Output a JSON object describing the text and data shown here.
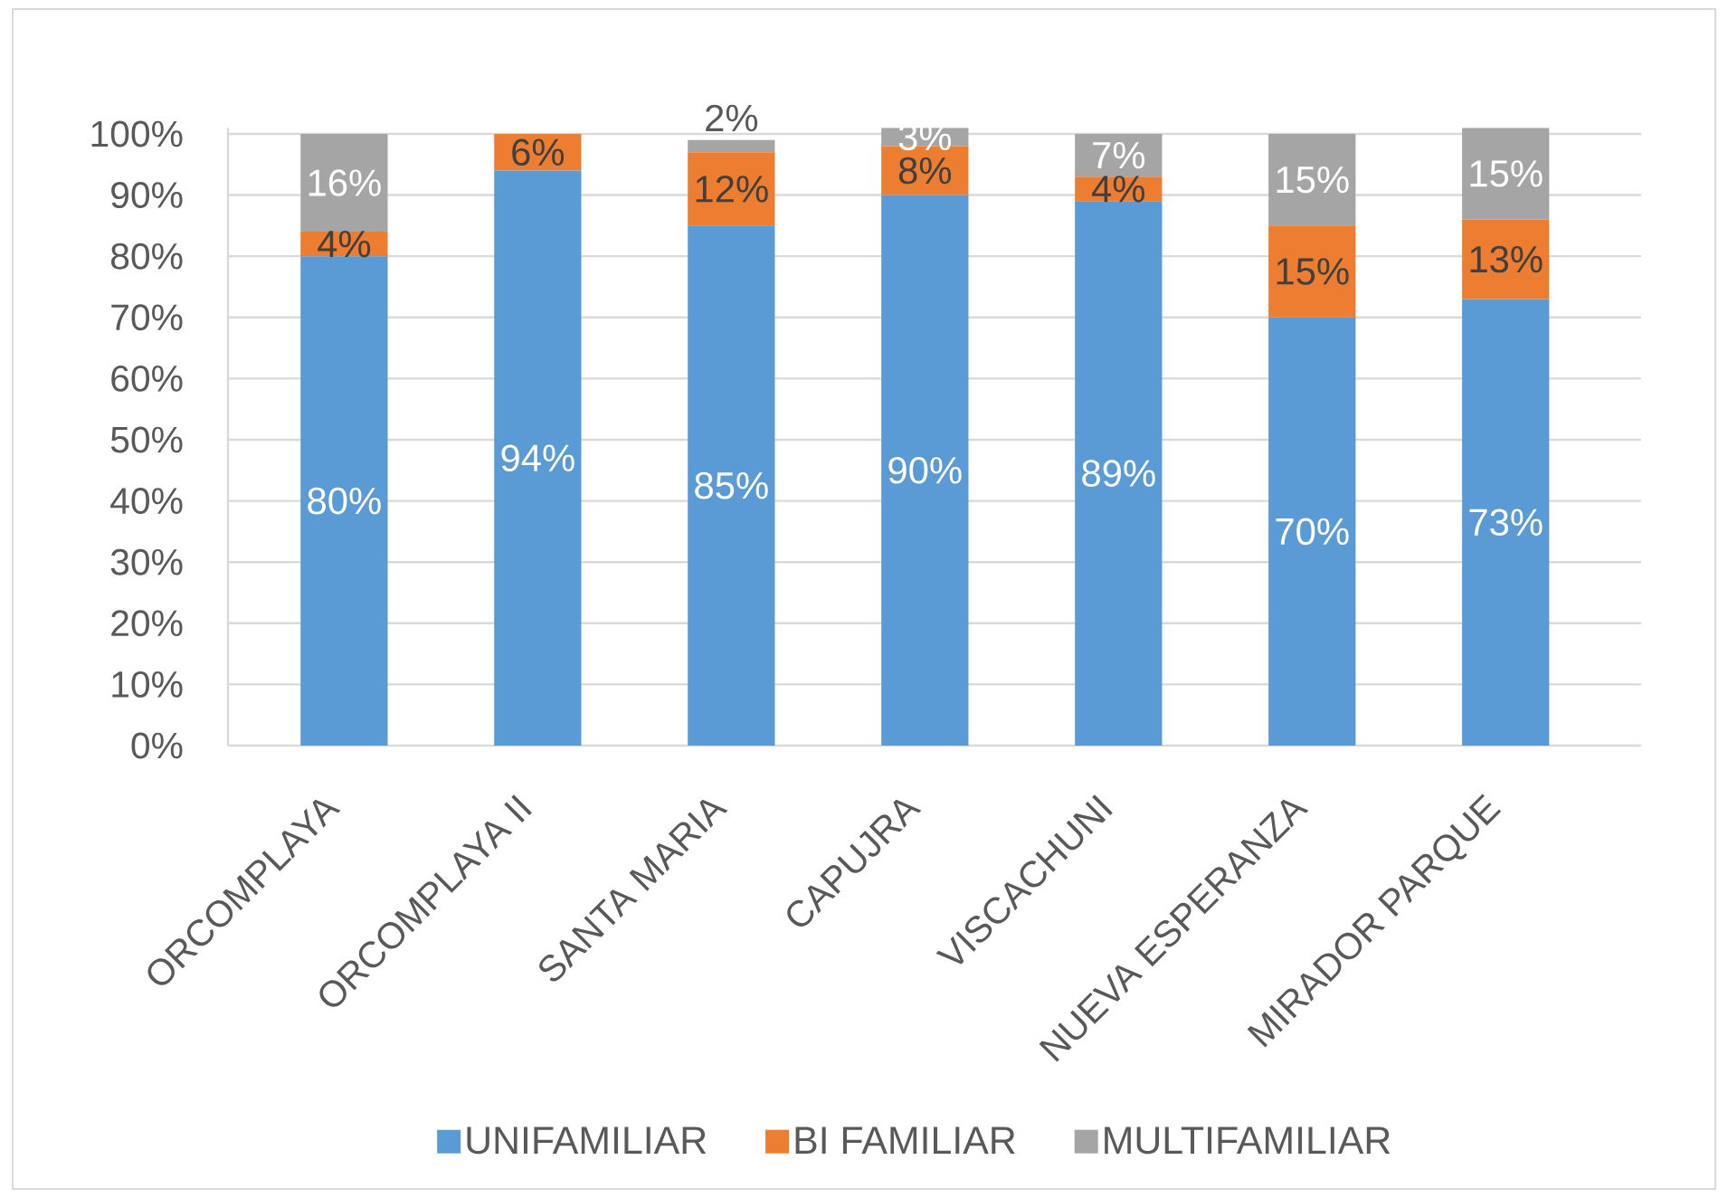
{
  "chart_data": {
    "type": "bar",
    "stacked": true,
    "categories": [
      "ORCOMPLAYA",
      "ORCOMPLAYA II",
      "SANTA MARIA",
      "CAPUJRA",
      "VISCACHUNI",
      "NUEVA ESPERANZA",
      "MIRADOR PARQUE"
    ],
    "series": [
      {
        "name": "UNIFAMILIAR",
        "color": "#5b9bd5",
        "values": [
          80,
          94,
          85,
          90,
          89,
          70,
          73
        ],
        "value_labels": [
          "80%",
          "94%",
          "85%",
          "90%",
          "89%",
          "70%",
          "73%"
        ]
      },
      {
        "name": "BI FAMILIAR",
        "color": "#ed7d31",
        "values": [
          4,
          6,
          12,
          8,
          4,
          15,
          13
        ],
        "value_labels": [
          "4%",
          "6%",
          "12%",
          "8%",
          "4%",
          "15%",
          "13%"
        ]
      },
      {
        "name": "MULTIFAMILIAR",
        "color": "#a5a5a5",
        "values": [
          16,
          null,
          2,
          3,
          7,
          15,
          15
        ],
        "value_labels": [
          "16%",
          null,
          "2%",
          "3%",
          "7%",
          "15%",
          "15%"
        ]
      }
    ],
    "ylim": [
      0,
      101
    ],
    "yticks": [
      {
        "value": 0,
        "label": "0%"
      },
      {
        "value": 10,
        "label": "10%"
      },
      {
        "value": 20,
        "label": "20%"
      },
      {
        "value": 30,
        "label": "30%"
      },
      {
        "value": 40,
        "label": "40%"
      },
      {
        "value": 50,
        "label": "50%"
      },
      {
        "value": 60,
        "label": "60%"
      },
      {
        "value": 70,
        "label": "70%"
      },
      {
        "value": 80,
        "label": "80%"
      },
      {
        "value": 90,
        "label": "90%"
      },
      {
        "value": 100,
        "label": "100%"
      }
    ],
    "grid": "y",
    "legend": "bottom"
  }
}
